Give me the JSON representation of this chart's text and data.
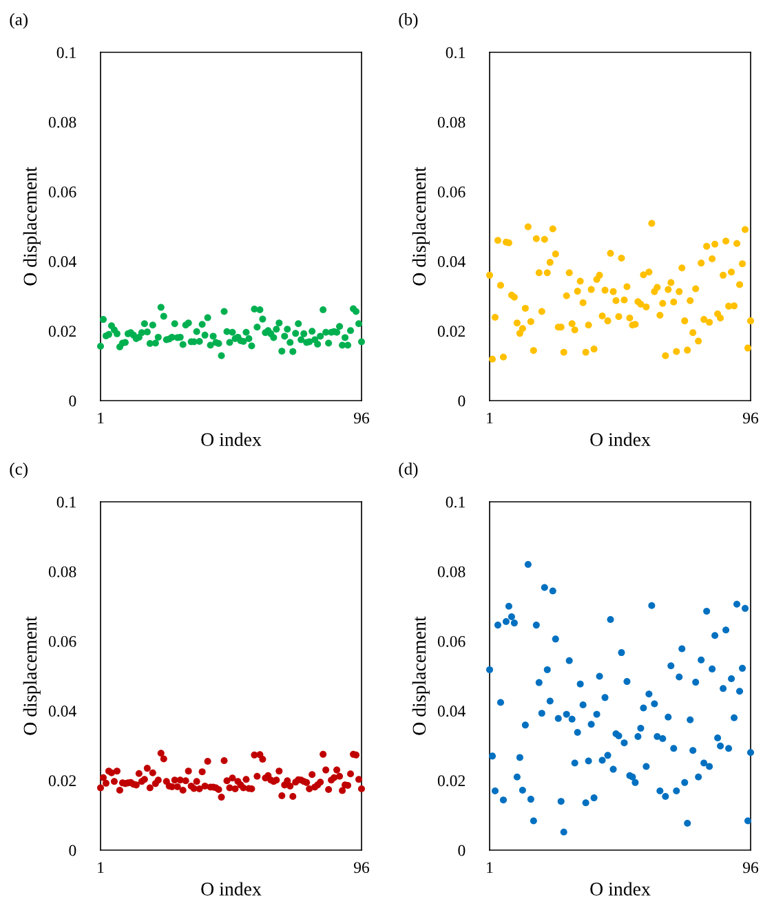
{
  "chart_data": [
    {
      "type": "scatter",
      "annotations": [
        "(a)"
      ],
      "xlabel": "O index",
      "ylabel": "O displacement",
      "marker": "circle",
      "grid": false,
      "xlim": [
        1,
        96
      ],
      "xticks": [
        1,
        96
      ],
      "ylim": [
        0,
        0.1
      ],
      "yticks": [
        0,
        0.02,
        0.04,
        0.06,
        0.08,
        0.1
      ],
      "x": [
        1,
        2,
        3,
        4,
        5,
        6,
        7,
        8,
        9,
        10,
        11,
        12,
        13,
        14,
        15,
        16,
        17,
        18,
        19,
        20,
        21,
        22,
        23,
        24,
        25,
        26,
        27,
        28,
        29,
        30,
        31,
        32,
        33,
        34,
        35,
        36,
        37,
        38,
        39,
        40,
        41,
        42,
        43,
        44,
        45,
        46,
        47,
        48,
        49,
        50,
        51,
        52,
        53,
        54,
        55,
        56,
        57,
        58,
        59,
        60,
        61,
        62,
        63,
        64,
        65,
        66,
        67,
        68,
        69,
        70,
        71,
        72,
        73,
        74,
        75,
        76,
        77,
        78,
        79,
        80,
        81,
        82,
        83,
        84,
        85,
        86,
        87,
        88,
        89,
        90,
        91,
        92,
        93,
        94,
        95,
        96
      ],
      "series": [
        {
          "color": "#00b050",
          "values": [
            0.0156,
            0.0233,
            0.0186,
            0.019,
            0.0215,
            0.0203,
            0.0192,
            0.0154,
            0.0165,
            0.0167,
            0.0192,
            0.0195,
            0.0188,
            0.0178,
            0.0182,
            0.0195,
            0.0221,
            0.0197,
            0.0164,
            0.0217,
            0.0165,
            0.0182,
            0.0268,
            0.0242,
            0.0175,
            0.0177,
            0.0182,
            0.0221,
            0.0181,
            0.0182,
            0.0161,
            0.0217,
            0.0223,
            0.0169,
            0.0169,
            0.0198,
            0.017,
            0.0219,
            0.0188,
            0.0238,
            0.0159,
            0.0185,
            0.0167,
            0.0164,
            0.0129,
            0.0256,
            0.0198,
            0.0167,
            0.0196,
            0.0178,
            0.0182,
            0.0172,
            0.017,
            0.0196,
            0.0178,
            0.0157,
            0.0263,
            0.0211,
            0.0261,
            0.0234,
            0.0195,
            0.0201,
            0.0192,
            0.0181,
            0.0205,
            0.0223,
            0.0142,
            0.0185,
            0.0205,
            0.0167,
            0.0141,
            0.0193,
            0.0221,
            0.0175,
            0.0192,
            0.0167,
            0.0169,
            0.0199,
            0.0175,
            0.0162,
            0.0185,
            0.0261,
            0.0196,
            0.0165,
            0.0196,
            0.0198,
            0.0196,
            0.0213,
            0.0159,
            0.0181,
            0.0159,
            0.0201,
            0.0264,
            0.0256,
            0.0221,
            0.0169
          ]
        }
      ]
    },
    {
      "type": "scatter",
      "annotations": [
        "(b)"
      ],
      "xlabel": "O index",
      "ylabel": "O displacement",
      "marker": "circle",
      "grid": false,
      "xlim": [
        1,
        96
      ],
      "xticks": [
        1,
        96
      ],
      "ylim": [
        0,
        0.1
      ],
      "yticks": [
        0,
        0.02,
        0.04,
        0.06,
        0.08,
        0.1
      ],
      "x": [
        1,
        2,
        3,
        4,
        5,
        6,
        7,
        8,
        9,
        10,
        11,
        12,
        13,
        14,
        15,
        16,
        17,
        18,
        19,
        20,
        21,
        22,
        23,
        24,
        25,
        26,
        27,
        28,
        29,
        30,
        31,
        32,
        33,
        34,
        35,
        36,
        37,
        38,
        39,
        40,
        41,
        42,
        43,
        44,
        45,
        46,
        47,
        48,
        49,
        50,
        51,
        52,
        53,
        54,
        55,
        56,
        57,
        58,
        59,
        60,
        61,
        62,
        63,
        64,
        65,
        66,
        67,
        68,
        69,
        70,
        71,
        72,
        73,
        74,
        75,
        76,
        77,
        78,
        79,
        80,
        81,
        82,
        83,
        84,
        85,
        86,
        87,
        88,
        89,
        90,
        91,
        92,
        93,
        94,
        95,
        96
      ],
      "series": [
        {
          "color": "#ffc000",
          "values": [
            0.036,
            0.0119,
            0.0239,
            0.046,
            0.0331,
            0.0125,
            0.0455,
            0.0453,
            0.0303,
            0.0297,
            0.0223,
            0.0193,
            0.0207,
            0.0265,
            0.0499,
            0.0227,
            0.0144,
            0.0465,
            0.0367,
            0.0256,
            0.0463,
            0.0367,
            0.0397,
            0.0493,
            0.0421,
            0.0211,
            0.0211,
            0.0139,
            0.0301,
            0.0367,
            0.0221,
            0.0203,
            0.0314,
            0.0343,
            0.0281,
            0.0139,
            0.0217,
            0.0319,
            0.0148,
            0.0348,
            0.036,
            0.0243,
            0.0317,
            0.0229,
            0.0423,
            0.0313,
            0.0287,
            0.0241,
            0.0409,
            0.0289,
            0.0327,
            0.0237,
            0.0217,
            0.0219,
            0.0284,
            0.0277,
            0.0361,
            0.0269,
            0.0369,
            0.0509,
            0.0313,
            0.0325,
            0.0245,
            0.0279,
            0.0129,
            0.0319,
            0.0339,
            0.0283,
            0.0141,
            0.0313,
            0.0381,
            0.0229,
            0.0145,
            0.0287,
            0.0195,
            0.0321,
            0.0171,
            0.0395,
            0.0233,
            0.0443,
            0.0225,
            0.0407,
            0.0449,
            0.0249,
            0.0237,
            0.036,
            0.0458,
            0.0271,
            0.0369,
            0.0272,
            0.0451,
            0.0333,
            0.0393,
            0.0491,
            0.0151,
            0.0229
          ]
        }
      ]
    },
    {
      "type": "scatter",
      "annotations": [
        "(c)"
      ],
      "xlabel": "O index",
      "ylabel": "O displacement",
      "marker": "circle",
      "grid": false,
      "xlim": [
        1,
        96
      ],
      "xticks": [
        1,
        96
      ],
      "ylim": [
        0,
        0.1
      ],
      "yticks": [
        0,
        0.02,
        0.04,
        0.06,
        0.08,
        0.1
      ],
      "x": [
        1,
        2,
        3,
        4,
        5,
        6,
        7,
        8,
        9,
        10,
        11,
        12,
        13,
        14,
        15,
        16,
        17,
        18,
        19,
        20,
        21,
        22,
        23,
        24,
        25,
        26,
        27,
        28,
        29,
        30,
        31,
        32,
        33,
        34,
        35,
        36,
        37,
        38,
        39,
        40,
        41,
        42,
        43,
        44,
        45,
        46,
        47,
        48,
        49,
        50,
        51,
        52,
        53,
        54,
        55,
        56,
        57,
        58,
        59,
        60,
        61,
        62,
        63,
        64,
        65,
        66,
        67,
        68,
        69,
        70,
        71,
        72,
        73,
        74,
        75,
        76,
        77,
        78,
        79,
        80,
        81,
        82,
        83,
        84,
        85,
        86,
        87,
        88,
        89,
        90,
        91,
        92,
        93,
        94,
        95,
        96
      ],
      "series": [
        {
          "color": "#c00000",
          "values": [
            0.0179,
            0.0208,
            0.0192,
            0.0227,
            0.0222,
            0.0197,
            0.0227,
            0.0172,
            0.0193,
            0.0191,
            0.0193,
            0.0194,
            0.0189,
            0.0187,
            0.022,
            0.0197,
            0.0203,
            0.0235,
            0.0179,
            0.0222,
            0.0191,
            0.0201,
            0.0278,
            0.0262,
            0.0197,
            0.0184,
            0.0182,
            0.0201,
            0.0182,
            0.0201,
            0.0172,
            0.0199,
            0.0227,
            0.0184,
            0.0177,
            0.0197,
            0.0176,
            0.0225,
            0.0184,
            0.0255,
            0.0181,
            0.0181,
            0.0179,
            0.0174,
            0.0152,
            0.0257,
            0.0199,
            0.0179,
            0.0207,
            0.0176,
            0.0197,
            0.0187,
            0.0179,
            0.0203,
            0.0177,
            0.0176,
            0.0273,
            0.0212,
            0.0274,
            0.0261,
            0.0207,
            0.0214,
            0.0201,
            0.0197,
            0.0201,
            0.0227,
            0.0156,
            0.0187,
            0.0199,
            0.0184,
            0.0154,
            0.0195,
            0.0202,
            0.0201,
            0.0197,
            0.0194,
            0.0176,
            0.0217,
            0.0181,
            0.0187,
            0.0195,
            0.0275,
            0.023,
            0.0174,
            0.0201,
            0.0208,
            0.023,
            0.0212,
            0.0171,
            0.0187,
            0.0186,
            0.0219,
            0.0275,
            0.0273,
            0.0203,
            0.0176
          ]
        }
      ]
    },
    {
      "type": "scatter",
      "annotations": [
        "(d)"
      ],
      "xlabel": "O index",
      "ylabel": "O displacement",
      "marker": "circle",
      "grid": false,
      "xlim": [
        1,
        96
      ],
      "xticks": [
        1,
        96
      ],
      "ylim": [
        0,
        0.1
      ],
      "yticks": [
        0,
        0.02,
        0.04,
        0.06,
        0.08,
        0.1
      ],
      "x": [
        1,
        2,
        3,
        4,
        5,
        6,
        7,
        8,
        9,
        10,
        11,
        12,
        13,
        14,
        15,
        16,
        17,
        18,
        19,
        20,
        21,
        22,
        23,
        24,
        25,
        26,
        27,
        28,
        29,
        30,
        31,
        32,
        33,
        34,
        35,
        36,
        37,
        38,
        39,
        40,
        41,
        42,
        43,
        44,
        45,
        46,
        47,
        48,
        49,
        50,
        51,
        52,
        53,
        54,
        55,
        56,
        57,
        58,
        59,
        60,
        61,
        62,
        63,
        64,
        65,
        66,
        67,
        68,
        69,
        70,
        71,
        72,
        73,
        74,
        75,
        76,
        77,
        78,
        79,
        80,
        81,
        82,
        83,
        84,
        85,
        86,
        87,
        88,
        89,
        90,
        91,
        92,
        93,
        94,
        95,
        96
      ],
      "series": [
        {
          "color": "#0070c0",
          "values": [
            0.0518,
            0.027,
            0.017,
            0.0646,
            0.0424,
            0.0144,
            0.0656,
            0.07,
            0.067,
            0.0652,
            0.021,
            0.0266,
            0.0172,
            0.0359,
            0.082,
            0.0146,
            0.0084,
            0.0646,
            0.0481,
            0.0393,
            0.0754,
            0.0518,
            0.0428,
            0.0744,
            0.0606,
            0.0378,
            0.014,
            0.0052,
            0.039,
            0.0544,
            0.0376,
            0.025,
            0.0338,
            0.0477,
            0.0417,
            0.0136,
            0.0256,
            0.0361,
            0.015,
            0.039,
            0.0499,
            0.0258,
            0.0438,
            0.0272,
            0.0662,
            0.0232,
            0.0334,
            0.0328,
            0.0567,
            0.0308,
            0.0484,
            0.0214,
            0.021,
            0.0194,
            0.0326,
            0.035,
            0.0408,
            0.024,
            0.0448,
            0.0702,
            0.042,
            0.0326,
            0.017,
            0.032,
            0.0154,
            0.0382,
            0.0529,
            0.0292,
            0.017,
            0.0497,
            0.0578,
            0.0194,
            0.0077,
            0.0374,
            0.0286,
            0.0482,
            0.021,
            0.0546,
            0.025,
            0.0686,
            0.024,
            0.052,
            0.0616,
            0.0322,
            0.0299,
            0.0464,
            0.0632,
            0.0292,
            0.0492,
            0.038,
            0.0706,
            0.0456,
            0.0522,
            0.0694,
            0.0084,
            0.028
          ]
        }
      ]
    }
  ]
}
